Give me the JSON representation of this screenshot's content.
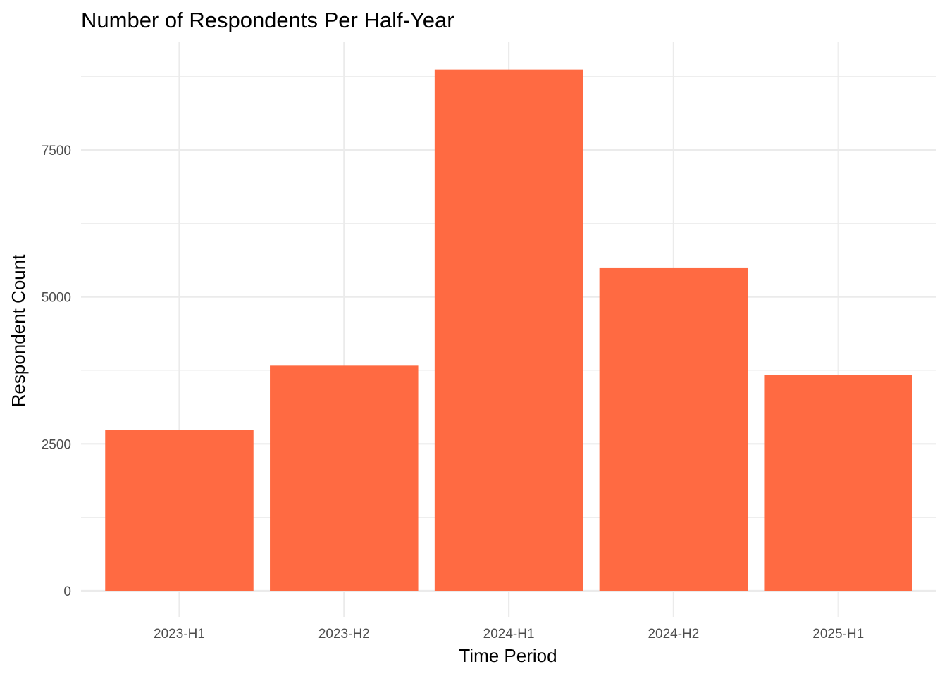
{
  "chart_data": {
    "type": "bar",
    "title": "Number of Respondents Per Half-Year",
    "xlabel": "Time Period",
    "ylabel": "Respondent Count",
    "categories": [
      "2023-H1",
      "2023-H2",
      "2024-H1",
      "2024-H2",
      "2025-H1"
    ],
    "values": [
      2740,
      3830,
      8870,
      5500,
      3670
    ],
    "ylim": [
      0,
      9300
    ],
    "y_ticks": [
      0,
      2500,
      5000,
      7500
    ],
    "y_tick_labels": [
      "0",
      "2500",
      "5000",
      "7500"
    ],
    "y_minor_ticks": [
      1250,
      3750,
      6250,
      8750
    ],
    "bar_color": "#FF6A42",
    "grid": true,
    "legend": "none"
  }
}
